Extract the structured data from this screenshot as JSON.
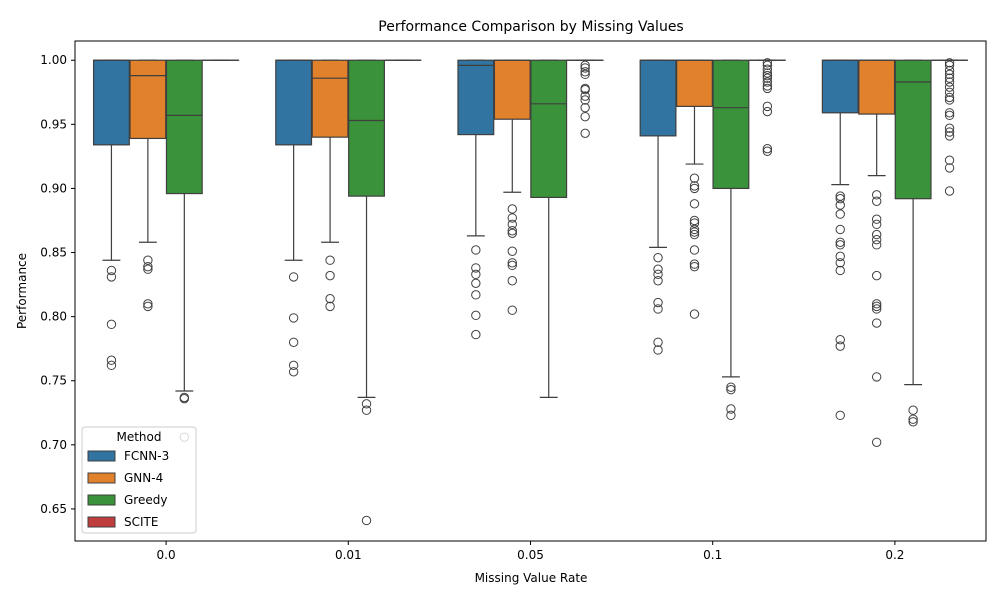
{
  "chart_data": {
    "type": "box",
    "title": "Performance Comparison by Missing Values",
    "xlabel": "Missing Value Rate",
    "ylabel": "Performance",
    "categories": [
      "0.0",
      "0.01",
      "0.05",
      "0.1",
      "0.2"
    ],
    "ylim": [
      0.625,
      1.015
    ],
    "yticks": [
      0.65,
      0.7,
      0.75,
      0.8,
      0.85,
      0.9,
      0.95,
      1.0
    ],
    "ytick_labels": [
      "0.65",
      "0.70",
      "0.75",
      "0.80",
      "0.85",
      "0.90",
      "0.95",
      "1.00"
    ],
    "grid": false,
    "legend": {
      "title": "Method",
      "placement": "lower-left"
    },
    "series": [
      {
        "name": "FCNN-3",
        "color": "#3274a1",
        "boxes": [
          {
            "q1": 0.934,
            "median": 1.0,
            "q3": 1.0,
            "whislo": 0.844,
            "whishi": 1.0,
            "fliers": [
              0.836,
              0.831,
              0.794,
              0.766,
              0.762
            ]
          },
          {
            "q1": 0.934,
            "median": 1.0,
            "q3": 1.0,
            "whislo": 0.844,
            "whishi": 1.0,
            "fliers": [
              0.831,
              0.799,
              0.78,
              0.762,
              0.757
            ]
          },
          {
            "q1": 0.942,
            "median": 0.996,
            "q3": 1.0,
            "whislo": 0.863,
            "whishi": 1.0,
            "fliers": [
              0.852,
              0.838,
              0.833,
              0.826,
              0.817,
              0.801,
              0.786
            ]
          },
          {
            "q1": 0.941,
            "median": 1.0,
            "q3": 1.0,
            "whislo": 0.854,
            "whishi": 1.0,
            "fliers": [
              0.846,
              0.837,
              0.833,
              0.828,
              0.811,
              0.806,
              0.78,
              0.774
            ]
          },
          {
            "q1": 0.959,
            "median": 1.0,
            "q3": 1.0,
            "whislo": 0.903,
            "whishi": 1.0,
            "fliers": [
              0.894,
              0.892,
              0.887,
              0.88,
              0.868,
              0.858,
              0.856,
              0.847,
              0.842,
              0.836,
              0.782,
              0.777,
              0.723
            ]
          }
        ]
      },
      {
        "name": "GNN-4",
        "color": "#e1812c",
        "boxes": [
          {
            "q1": 0.939,
            "median": 0.988,
            "q3": 1.0,
            "whislo": 0.858,
            "whishi": 1.0,
            "fliers": [
              0.844,
              0.839,
              0.837,
              0.81,
              0.808
            ]
          },
          {
            "q1": 0.94,
            "median": 0.986,
            "q3": 1.0,
            "whislo": 0.858,
            "whishi": 1.0,
            "fliers": [
              0.844,
              0.832,
              0.814,
              0.808
            ]
          },
          {
            "q1": 0.954,
            "median": 1.0,
            "q3": 1.0,
            "whislo": 0.897,
            "whishi": 1.0,
            "fliers": [
              0.884,
              0.877,
              0.872,
              0.867,
              0.865,
              0.851,
              0.842,
              0.84,
              0.828,
              0.805
            ]
          },
          {
            "q1": 0.964,
            "median": 1.0,
            "q3": 1.0,
            "whislo": 0.919,
            "whishi": 1.0,
            "fliers": [
              0.908,
              0.902,
              0.9,
              0.888,
              0.875,
              0.873,
              0.868,
              0.866,
              0.864,
              0.852,
              0.841,
              0.839,
              0.802
            ]
          },
          {
            "q1": 0.958,
            "median": 1.0,
            "q3": 1.0,
            "whislo": 0.91,
            "whishi": 1.0,
            "fliers": [
              0.895,
              0.89,
              0.876,
              0.872,
              0.864,
              0.86,
              0.856,
              0.832,
              0.81,
              0.808,
              0.806,
              0.795,
              0.753,
              0.702
            ]
          }
        ]
      },
      {
        "name": "Greedy",
        "color": "#3a923a",
        "boxes": [
          {
            "q1": 0.896,
            "median": 0.957,
            "q3": 1.0,
            "whislo": 0.742,
            "whishi": 1.0,
            "fliers": [
              0.737,
              0.736,
              0.706
            ]
          },
          {
            "q1": 0.894,
            "median": 0.953,
            "q3": 1.0,
            "whislo": 0.737,
            "whishi": 1.0,
            "fliers": [
              0.732,
              0.727,
              0.641
            ]
          },
          {
            "q1": 0.893,
            "median": 0.966,
            "q3": 1.0,
            "whislo": 0.737,
            "whishi": 1.0,
            "fliers": []
          },
          {
            "q1": 0.9,
            "median": 0.963,
            "q3": 1.0,
            "whislo": 0.753,
            "whishi": 1.0,
            "fliers": [
              0.745,
              0.743,
              0.728,
              0.723
            ]
          },
          {
            "q1": 0.892,
            "median": 0.983,
            "q3": 1.0,
            "whislo": 0.747,
            "whishi": 1.0,
            "fliers": [
              0.727,
              0.72,
              0.718
            ]
          }
        ]
      },
      {
        "name": "SCITE",
        "color": "#c03d3e",
        "boxes": [
          {
            "q1": 1.0,
            "median": 1.0,
            "q3": 1.0,
            "whislo": 1.0,
            "whishi": 1.0,
            "fliers": []
          },
          {
            "q1": 1.0,
            "median": 1.0,
            "q3": 1.0,
            "whislo": 1.0,
            "whishi": 1.0,
            "fliers": []
          },
          {
            "q1": 1.0,
            "median": 1.0,
            "q3": 1.0,
            "whislo": 1.0,
            "whishi": 1.0,
            "fliers": [
              0.996,
              0.994,
              0.991,
              0.989,
              0.978,
              0.977,
              0.972,
              0.969,
              0.963,
              0.956,
              0.943
            ]
          },
          {
            "q1": 1.0,
            "median": 1.0,
            "q3": 1.0,
            "whislo": 1.0,
            "whishi": 1.0,
            "fliers": [
              0.998,
              0.996,
              0.993,
              0.99,
              0.988,
              0.986,
              0.983,
              0.98,
              0.978,
              0.964,
              0.96,
              0.931,
              0.929
            ]
          },
          {
            "q1": 1.0,
            "median": 1.0,
            "q3": 1.0,
            "whislo": 1.0,
            "whishi": 1.0,
            "fliers": [
              0.998,
              0.996,
              0.992,
              0.989,
              0.986,
              0.983,
              0.979,
              0.975,
              0.971,
              0.969,
              0.959,
              0.957,
              0.947,
              0.944,
              0.941,
              0.922,
              0.916,
              0.898
            ]
          }
        ]
      }
    ]
  }
}
